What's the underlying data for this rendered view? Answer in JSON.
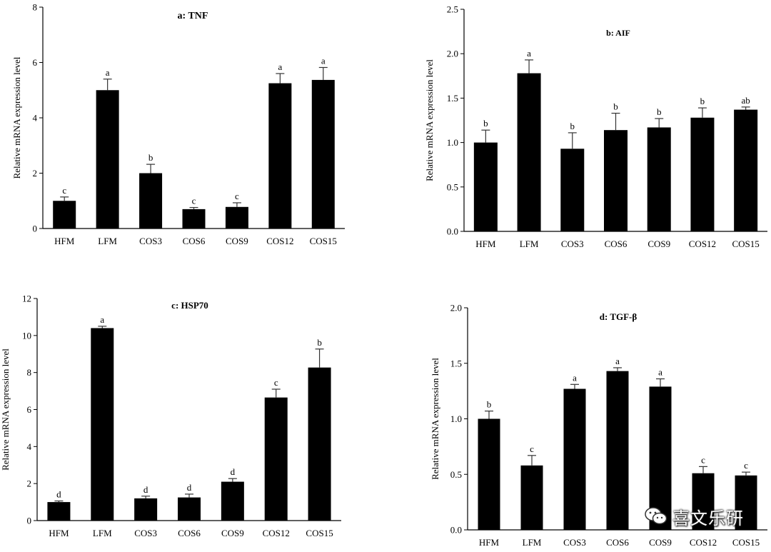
{
  "chart_data": [
    {
      "id": "a",
      "type": "bar",
      "title": "a: TNF",
      "xlabel": "",
      "ylabel": "Relative mRNA expression level",
      "categories": [
        "HFM",
        "LFM",
        "COS3",
        "COS6",
        "COS9",
        "COS12",
        "COS15"
      ],
      "values": [
        1.0,
        5.0,
        2.0,
        0.7,
        0.78,
        5.25,
        5.37
      ],
      "errors": [
        0.14,
        0.4,
        0.32,
        0.06,
        0.15,
        0.35,
        0.45
      ],
      "letters": [
        "c",
        "a",
        "b",
        "c",
        "c",
        "a",
        "a"
      ],
      "ylim": [
        0,
        8
      ],
      "yticks": [
        0,
        2,
        4,
        6,
        8
      ],
      "ytick_labels": [
        "0",
        "2",
        "4",
        "6",
        "8"
      ]
    },
    {
      "id": "b",
      "type": "bar",
      "title": "b: AIF",
      "xlabel": "",
      "ylabel": "Relative mRNA expression level",
      "categories": [
        "HFM",
        "LFM",
        "COS3",
        "COS6",
        "COS9",
        "COS12",
        "COS15"
      ],
      "values": [
        1.0,
        1.78,
        0.93,
        1.14,
        1.17,
        1.28,
        1.37
      ],
      "errors": [
        0.14,
        0.15,
        0.18,
        0.19,
        0.1,
        0.11,
        0.03
      ],
      "letters": [
        "b",
        "a",
        "b",
        "b",
        "b",
        "b",
        "ab"
      ],
      "ylim": [
        0,
        2.5
      ],
      "yticks": [
        0,
        0.5,
        1.0,
        1.5,
        2.0,
        2.5
      ],
      "ytick_labels": [
        "0.0",
        "0.5",
        "1.0",
        "1.5",
        "2.0",
        "2.5"
      ]
    },
    {
      "id": "c",
      "type": "bar",
      "title": "c: HSP70",
      "xlabel": "",
      "ylabel": "Relative mRNA expression level",
      "categories": [
        "HFM",
        "LFM",
        "COS3",
        "COS6",
        "COS9",
        "COS12",
        "COS15"
      ],
      "values": [
        1.0,
        10.4,
        1.2,
        1.25,
        2.1,
        6.65,
        8.27
      ],
      "errors": [
        0.06,
        0.1,
        0.12,
        0.18,
        0.17,
        0.45,
        1.0
      ],
      "letters": [
        "d",
        "a",
        "d",
        "d",
        "d",
        "c",
        "b"
      ],
      "ylim": [
        0,
        12
      ],
      "yticks": [
        0,
        2,
        4,
        6,
        8,
        10,
        12
      ],
      "ytick_labels": [
        "0",
        "2",
        "4",
        "6",
        "8",
        "10",
        "12"
      ]
    },
    {
      "id": "d",
      "type": "bar",
      "title": "d: TGF-β",
      "xlabel": "",
      "ylabel": "Relative mRNA expression level",
      "categories": [
        "HFM",
        "LFM",
        "COS3",
        "COS6",
        "COS9",
        "COS12",
        "COS15"
      ],
      "values": [
        1.0,
        0.58,
        1.27,
        1.43,
        1.29,
        0.51,
        0.49
      ],
      "errors": [
        0.07,
        0.09,
        0.04,
        0.03,
        0.07,
        0.06,
        0.03
      ],
      "letters": [
        "b",
        "c",
        "a",
        "a",
        "a",
        "c",
        "c"
      ],
      "ylim": [
        0,
        2.0
      ],
      "yticks": [
        0,
        0.5,
        1.0,
        1.5,
        2.0
      ],
      "ytick_labels": [
        "0.0",
        "0.5",
        "1.0",
        "1.5",
        "2.0"
      ]
    }
  ],
  "watermark": {
    "text": "喜文乐研",
    "icon": "wechat-icon"
  }
}
